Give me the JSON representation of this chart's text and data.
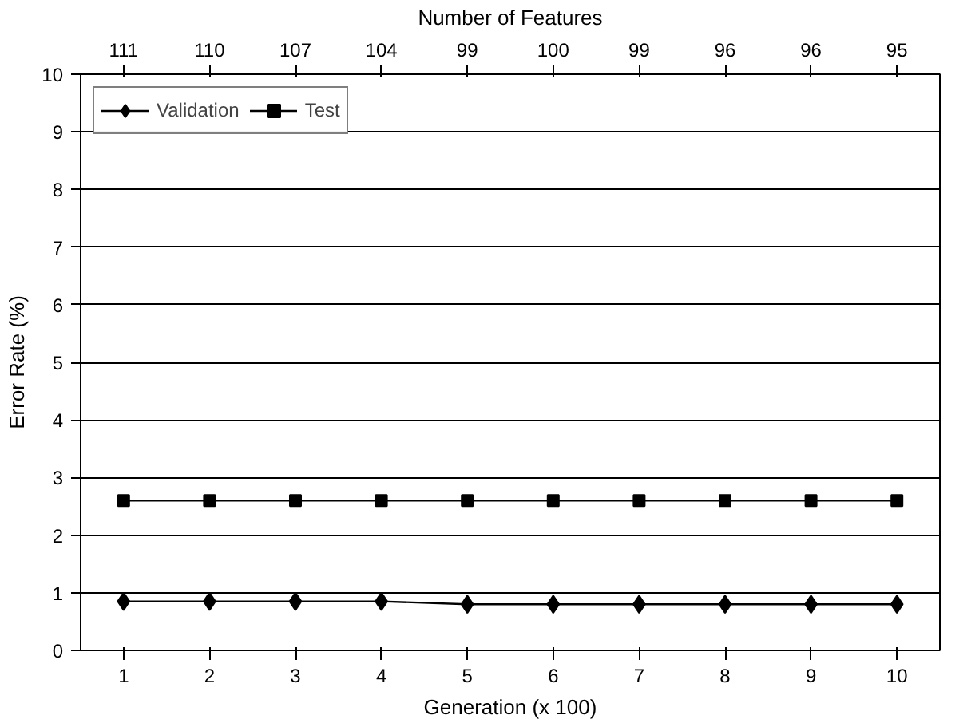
{
  "chart_data": {
    "type": "line",
    "xlabel": "Generation (x 100)",
    "ylabel": "Error Rate (%)",
    "x2label": "Number of Features",
    "x": [
      1,
      2,
      3,
      4,
      5,
      6,
      7,
      8,
      9,
      10
    ],
    "xlim": [
      0.5,
      10.5
    ],
    "xticks": [
      1,
      2,
      3,
      4,
      5,
      6,
      7,
      8,
      9,
      10
    ],
    "annotations": [
      "111",
      "110",
      "107",
      "104",
      "99",
      "100",
      "99",
      "96",
      "96",
      "95"
    ],
    "ylim": [
      0,
      10
    ],
    "yticks": [
      0,
      1,
      2,
      3,
      4,
      5,
      6,
      7,
      8,
      9,
      10
    ],
    "series": [
      {
        "name": "Validation",
        "color": "#000000",
        "marker": "diamond",
        "values": [
          0.85,
          0.85,
          0.85,
          0.85,
          0.8,
          0.8,
          0.8,
          0.8,
          0.8,
          0.8
        ]
      },
      {
        "name": "Test",
        "color": "#000000",
        "marker": "square",
        "values": [
          2.6,
          2.6,
          2.6,
          2.6,
          2.6,
          2.6,
          2.6,
          2.6,
          2.6,
          2.6
        ]
      }
    ],
    "grid": "y",
    "legend": "top left"
  }
}
